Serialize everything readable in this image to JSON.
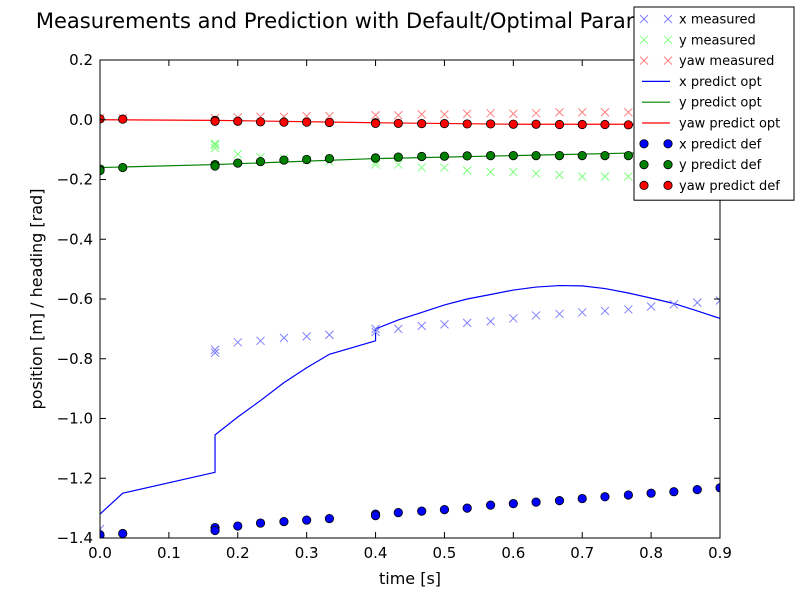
{
  "chart_data": {
    "type": "scatter",
    "title": "Measurements and Prediction with Default/Optimal Parameter Values",
    "xlabel": "time [s]",
    "ylabel": "position [m] / heading [rad]",
    "xlim": [
      0.0,
      0.9
    ],
    "ylim": [
      -1.4,
      0.2
    ],
    "x_ticks": [
      "0.0",
      "0.1",
      "0.2",
      "0.3",
      "0.4",
      "0.5",
      "0.6",
      "0.7",
      "0.8",
      "0.9"
    ],
    "y_ticks": [
      "0.2",
      "0.0",
      "−0.2",
      "−0.4",
      "−0.6",
      "−0.8",
      "−1.0",
      "−1.2",
      "−1.4"
    ],
    "grid": false,
    "legend": "top-right",
    "series": [
      {
        "name": "x measured",
        "kind": "cross",
        "color": "#8080ff",
        "x": [
          0.0,
          0.167,
          0.167,
          0.2,
          0.233,
          0.267,
          0.3,
          0.333,
          0.4,
          0.4,
          0.433,
          0.467,
          0.5,
          0.533,
          0.567,
          0.6,
          0.633,
          0.667,
          0.7,
          0.733,
          0.767,
          0.8,
          0.833,
          0.867,
          0.9
        ],
        "y": [
          -1.37,
          -0.77,
          -0.78,
          -0.745,
          -0.74,
          -0.73,
          -0.725,
          -0.72,
          -0.71,
          -0.7,
          -0.7,
          -0.69,
          -0.685,
          -0.68,
          -0.675,
          -0.665,
          -0.655,
          -0.65,
          -0.645,
          -0.64,
          -0.635,
          -0.625,
          -0.618,
          -0.612,
          -0.605
        ]
      },
      {
        "name": "y measured",
        "kind": "cross",
        "color": "#80ff80",
        "x": [
          0.0,
          0.167,
          0.167,
          0.167,
          0.2,
          0.233,
          0.267,
          0.3,
          0.333,
          0.4,
          0.4,
          0.433,
          0.467,
          0.5,
          0.533,
          0.567,
          0.6,
          0.633,
          0.667,
          0.7,
          0.733,
          0.767
        ],
        "y": [
          -0.165,
          -0.085,
          -0.08,
          -0.095,
          -0.115,
          -0.125,
          -0.13,
          -0.135,
          -0.14,
          -0.14,
          -0.15,
          -0.15,
          -0.16,
          -0.16,
          -0.17,
          -0.175,
          -0.175,
          -0.18,
          -0.185,
          -0.19,
          -0.19,
          -0.19
        ]
      },
      {
        "name": "yaw measured",
        "kind": "cross",
        "color": "#ff8080",
        "x": [
          0.0,
          0.033,
          0.167,
          0.2,
          0.233,
          0.267,
          0.3,
          0.333,
          0.4,
          0.433,
          0.467,
          0.5,
          0.533,
          0.567,
          0.6,
          0.633,
          0.667,
          0.7,
          0.733,
          0.767
        ],
        "y": [
          0.005,
          0.005,
          0.005,
          0.008,
          0.01,
          0.01,
          0.012,
          0.012,
          0.015,
          0.015,
          0.018,
          0.018,
          0.02,
          0.022,
          0.02,
          0.022,
          0.025,
          0.025,
          0.025,
          0.025
        ]
      },
      {
        "name": "x predict opt",
        "kind": "line",
        "color": "#0000ff",
        "x": [
          0.0,
          0.033,
          0.167,
          0.167,
          0.2,
          0.233,
          0.267,
          0.3,
          0.333,
          0.4,
          0.4,
          0.433,
          0.467,
          0.5,
          0.533,
          0.567,
          0.6,
          0.633,
          0.667,
          0.7,
          0.733,
          0.767,
          0.8,
          0.833,
          0.867,
          0.9
        ],
        "y": [
          -1.32,
          -1.25,
          -1.18,
          -1.055,
          -0.995,
          -0.94,
          -0.88,
          -0.83,
          -0.785,
          -0.74,
          -0.7,
          -0.67,
          -0.645,
          -0.62,
          -0.6,
          -0.585,
          -0.57,
          -0.56,
          -0.555,
          -0.556,
          -0.565,
          -0.58,
          -0.597,
          -0.615,
          -0.64,
          -0.665
        ]
      },
      {
        "name": "y predict opt",
        "kind": "line",
        "color": "#008000",
        "x": [
          0.0,
          0.167,
          0.4,
          0.6,
          0.8,
          0.9
        ],
        "y": [
          -0.16,
          -0.15,
          -0.13,
          -0.12,
          -0.11,
          -0.1
        ]
      },
      {
        "name": "yaw predict opt",
        "kind": "line",
        "color": "#ff0000",
        "x": [
          0.0,
          0.167,
          0.4,
          0.6,
          0.8,
          0.9
        ],
        "y": [
          0.0,
          -0.002,
          -0.01,
          -0.015,
          -0.015,
          -0.015
        ]
      },
      {
        "name": "x predict def",
        "kind": "dot",
        "color": "#0000ff",
        "x": [
          0.0,
          0.033,
          0.167,
          0.167,
          0.2,
          0.233,
          0.267,
          0.3,
          0.333,
          0.4,
          0.4,
          0.433,
          0.467,
          0.5,
          0.533,
          0.567,
          0.6,
          0.633,
          0.667,
          0.7,
          0.733,
          0.767,
          0.8,
          0.833,
          0.867,
          0.9
        ],
        "y": [
          -1.39,
          -1.385,
          -1.365,
          -1.375,
          -1.36,
          -1.35,
          -1.345,
          -1.34,
          -1.335,
          -1.32,
          -1.325,
          -1.315,
          -1.31,
          -1.305,
          -1.3,
          -1.29,
          -1.285,
          -1.28,
          -1.275,
          -1.268,
          -1.262,
          -1.256,
          -1.25,
          -1.245,
          -1.238,
          -1.232
        ]
      },
      {
        "name": "y predict def",
        "kind": "dot",
        "color": "#008000",
        "x": [
          0.0,
          0.0,
          0.033,
          0.167,
          0.167,
          0.2,
          0.233,
          0.267,
          0.3,
          0.333,
          0.4,
          0.4,
          0.433,
          0.467,
          0.5,
          0.533,
          0.567,
          0.6,
          0.633,
          0.667,
          0.7,
          0.733,
          0.767
        ],
        "y": [
          -0.165,
          -0.17,
          -0.16,
          -0.15,
          -0.155,
          -0.145,
          -0.14,
          -0.135,
          -0.133,
          -0.13,
          -0.128,
          -0.128,
          -0.125,
          -0.123,
          -0.122,
          -0.121,
          -0.12,
          -0.12,
          -0.12,
          -0.12,
          -0.12,
          -0.12,
          -0.12
        ]
      },
      {
        "name": "yaw predict def",
        "kind": "dot",
        "color": "#ff0000",
        "x": [
          0.0,
          0.033,
          0.167,
          0.167,
          0.2,
          0.233,
          0.267,
          0.3,
          0.333,
          0.4,
          0.4,
          0.433,
          0.467,
          0.5,
          0.533,
          0.567,
          0.6,
          0.633,
          0.667,
          0.7,
          0.733,
          0.767
        ],
        "y": [
          0.003,
          0.002,
          -0.002,
          -0.005,
          -0.005,
          -0.007,
          -0.008,
          -0.008,
          -0.009,
          -0.01,
          -0.012,
          -0.012,
          -0.013,
          -0.013,
          -0.014,
          -0.014,
          -0.015,
          -0.015,
          -0.016,
          -0.016,
          -0.016,
          -0.017
        ]
      }
    ]
  }
}
